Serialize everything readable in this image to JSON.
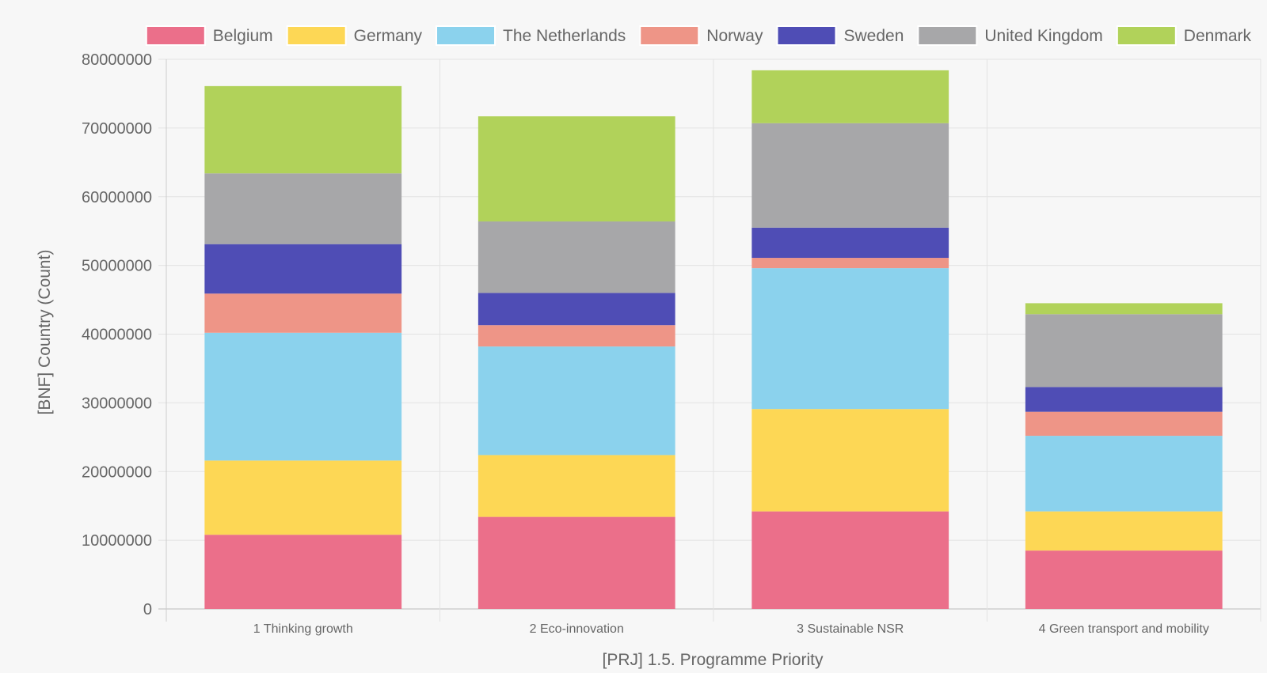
{
  "chart_data": {
    "type": "bar",
    "stacked": true,
    "title": "",
    "xlabel": "[PRJ] 1.5. Programme Priority",
    "ylabel": "[BNF] Country (Count)",
    "ylim": [
      0,
      80000000
    ],
    "yticks": [
      0,
      10000000,
      20000000,
      30000000,
      40000000,
      50000000,
      60000000,
      70000000,
      80000000
    ],
    "ytick_labels": [
      "0",
      "10000000",
      "20000000",
      "30000000",
      "40000000",
      "50000000",
      "60000000",
      "70000000",
      "80000000"
    ],
    "grid": true,
    "legend_position": "top",
    "categories": [
      "1 Thinking growth",
      "2 Eco-innovation",
      "3 Sustainable NSR",
      "4 Green transport and mobility"
    ],
    "series": [
      {
        "name": "Belgium",
        "color": "#eb6f8a",
        "values": [
          10800000,
          13400000,
          14200000,
          8500000
        ]
      },
      {
        "name": "Germany",
        "color": "#fdd755",
        "values": [
          10800000,
          9000000,
          14900000,
          5700000
        ]
      },
      {
        "name": "The Netherlands",
        "color": "#8bd2ed",
        "values": [
          18600000,
          15800000,
          20500000,
          11000000
        ]
      },
      {
        "name": "Norway",
        "color": "#ee9587",
        "values": [
          5700000,
          3100000,
          1500000,
          3500000
        ]
      },
      {
        "name": "Sweden",
        "color": "#4f4db5",
        "values": [
          7200000,
          4700000,
          4400000,
          3600000
        ]
      },
      {
        "name": "United Kingdom",
        "color": "#a7a7a9",
        "values": [
          10300000,
          10400000,
          15200000,
          10600000
        ]
      },
      {
        "name": "Denmark",
        "color": "#b1d25a",
        "values": [
          12700000,
          15300000,
          7700000,
          1600000
        ]
      }
    ]
  }
}
